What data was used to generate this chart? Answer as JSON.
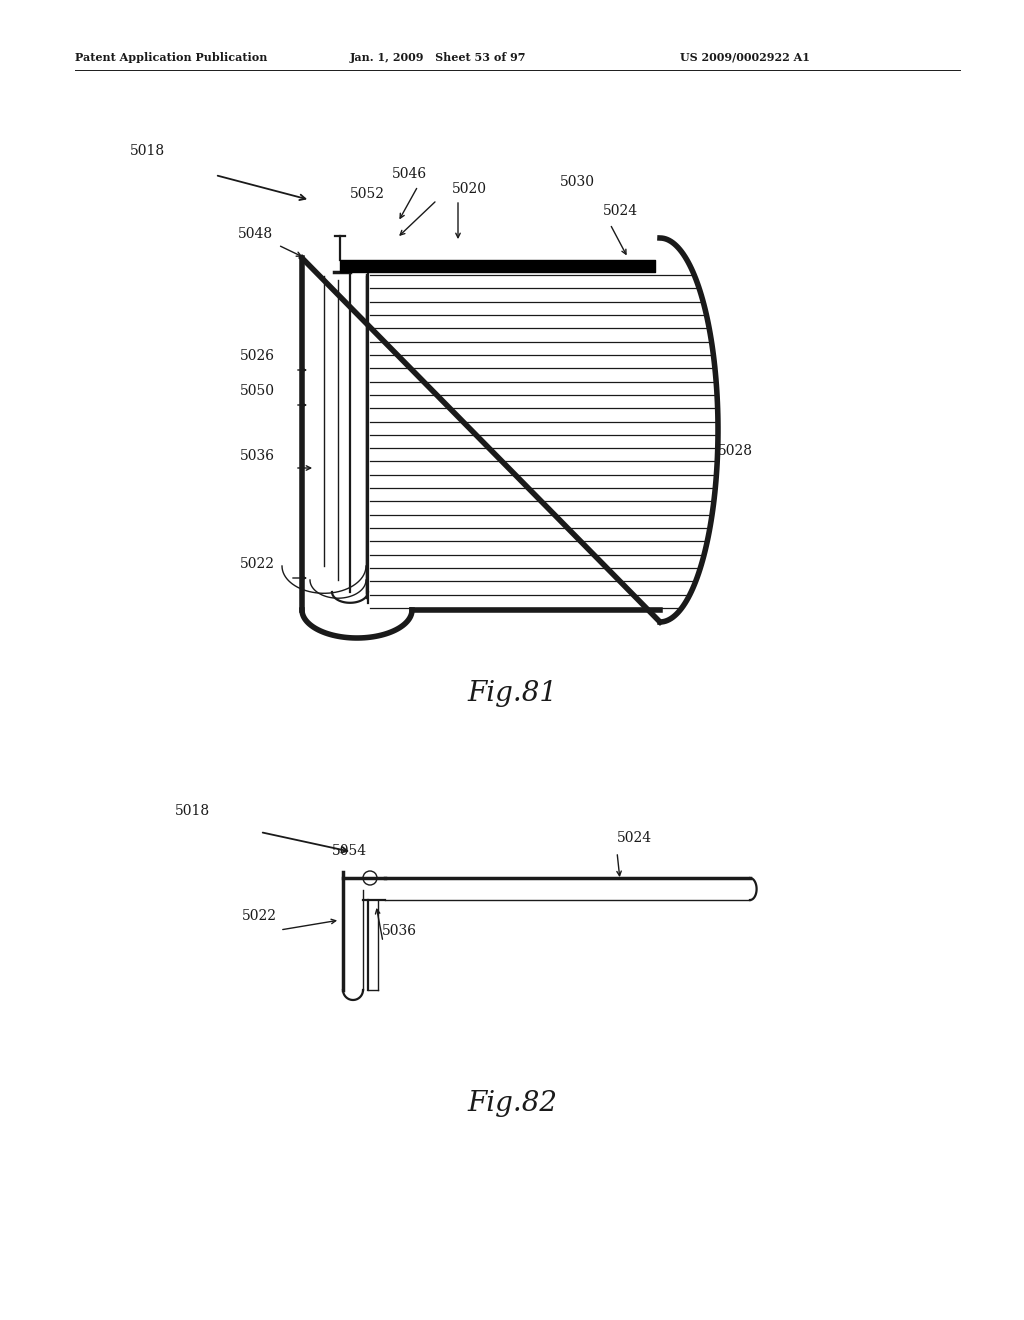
{
  "header_left": "Patent Application Publication",
  "header_mid": "Jan. 1, 2009   Sheet 53 of 97",
  "header_right": "US 2009/0002922 A1",
  "fig81_caption": "Fig.81",
  "fig82_caption": "Fig.82",
  "bg_color": "#ffffff",
  "line_color": "#1a1a1a"
}
